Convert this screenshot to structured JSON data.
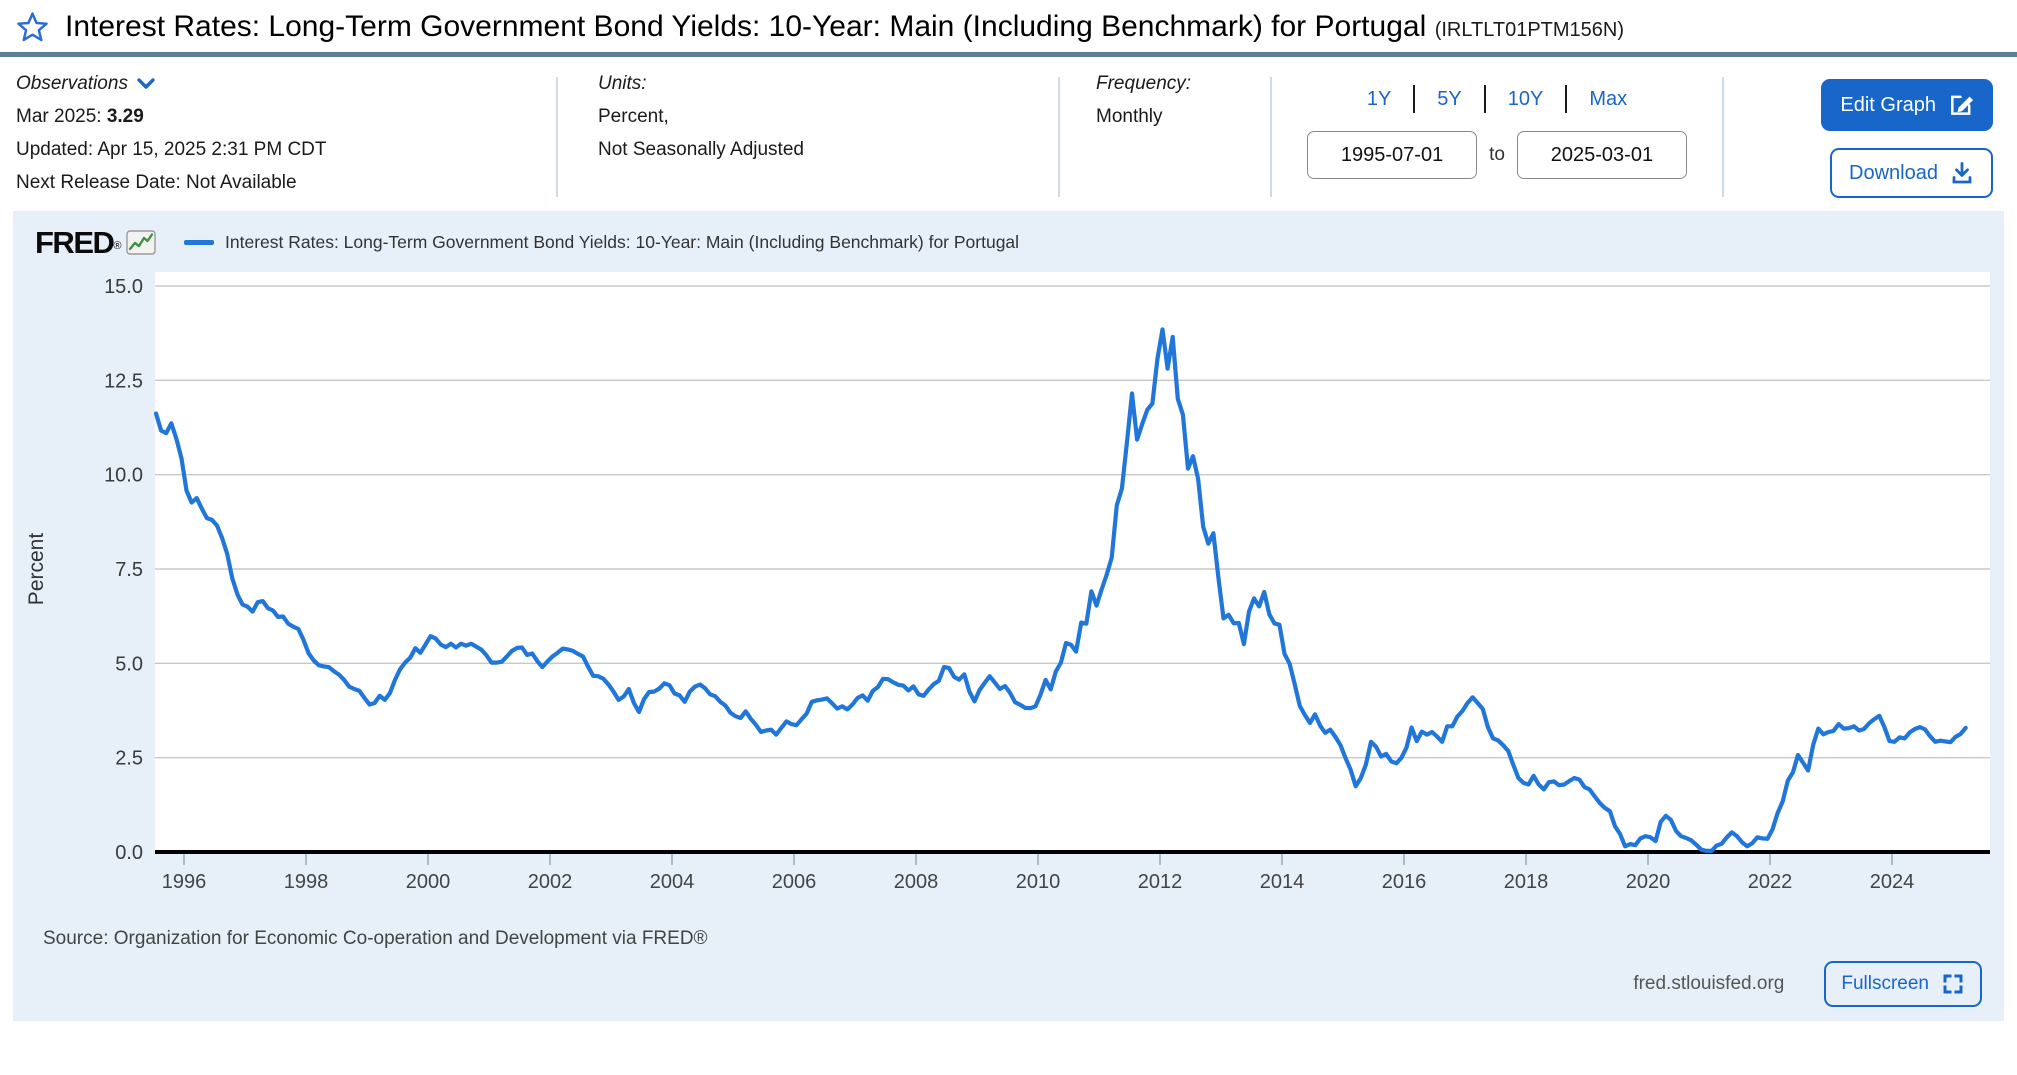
{
  "accent_color": "#1866c9",
  "title": {
    "text": "Interest Rates: Long-Term Government Bond Yields: 10-Year: Main (Including Benchmark) for Portugal",
    "series_id": "(IRLTLT01PTM156N)"
  },
  "header": {
    "observations": {
      "label": "Observations",
      "latest_period": "Mar 2025:",
      "latest_value": "3.29",
      "updated": "Updated: Apr 15, 2025 2:31 PM CDT",
      "next_release": "Next Release Date: Not Available"
    },
    "units": {
      "label": "Units:",
      "line1": "Percent,",
      "line2": "Not Seasonally Adjusted"
    },
    "frequency": {
      "label": "Frequency:",
      "value": "Monthly"
    },
    "range": {
      "presets": [
        "1Y",
        "5Y",
        "10Y",
        "Max"
      ],
      "start": "1995-07-01",
      "separator": "to",
      "end": "2025-03-01"
    },
    "buttons": {
      "edit": "Edit Graph",
      "download": "Download"
    }
  },
  "chart": {
    "logo": "FRED",
    "legend": "Interest Rates: Long-Term Government Bond Yields: 10-Year: Main (Including Benchmark) for Portugal",
    "source": "Source: Organization for Economic Co-operation and Development via FRED®",
    "site": "fred.stlouisfed.org",
    "fullscreen": "Fullscreen"
  },
  "chart_data": {
    "type": "line",
    "title": "Interest Rates: Long-Term Government Bond Yields: 10-Year: Main (Including Benchmark) for Portugal",
    "xlabel": "",
    "ylabel": "Percent",
    "ylim": [
      0,
      15
    ],
    "y_ticks": [
      15.0,
      12.5,
      10.0,
      7.5,
      5.0,
      2.5,
      0.0
    ],
    "x_ticks": [
      1996,
      1998,
      2000,
      2002,
      2004,
      2006,
      2008,
      2010,
      2012,
      2014,
      2016,
      2018,
      2020,
      2022,
      2024
    ],
    "grid": true,
    "legend_position": "top",
    "line_color": "#2176d9",
    "start": "1995-07",
    "end": "2025-03",
    "series": [
      {
        "year": 1995,
        "first_month": 7,
        "values": [
          11.62,
          11.17,
          11.1,
          11.36,
          10.95,
          10.43
        ]
      },
      {
        "year": 1996,
        "first_month": 1,
        "values": [
          9.58,
          9.26,
          9.38,
          9.1,
          8.85,
          8.8,
          8.65,
          8.32,
          7.9,
          7.25,
          6.83,
          6.56
        ]
      },
      {
        "year": 1997,
        "first_month": 1,
        "values": [
          6.5,
          6.37,
          6.62,
          6.65,
          6.46,
          6.4,
          6.23,
          6.24,
          6.05,
          5.97,
          5.91,
          5.62
        ]
      },
      {
        "year": 1998,
        "first_month": 1,
        "values": [
          5.27,
          5.08,
          4.95,
          4.92,
          4.9,
          4.79,
          4.7,
          4.56,
          4.38,
          4.32,
          4.27,
          4.08
        ]
      },
      {
        "year": 1999,
        "first_month": 1,
        "values": [
          3.91,
          3.95,
          4.14,
          4.03,
          4.21,
          4.56,
          4.84,
          5.02,
          5.15,
          5.4,
          5.28,
          5.5
        ]
      },
      {
        "year": 2000,
        "first_month": 1,
        "values": [
          5.72,
          5.66,
          5.5,
          5.43,
          5.52,
          5.42,
          5.52,
          5.47,
          5.52,
          5.44,
          5.36,
          5.21
        ]
      },
      {
        "year": 2001,
        "first_month": 1,
        "values": [
          5.02,
          5.02,
          5.04,
          5.18,
          5.33,
          5.41,
          5.42,
          5.22,
          5.26,
          5.06,
          4.9,
          5.05
        ]
      },
      {
        "year": 2002,
        "first_month": 1,
        "values": [
          5.18,
          5.28,
          5.39,
          5.37,
          5.33,
          5.25,
          5.18,
          4.91,
          4.67,
          4.66,
          4.59,
          4.44
        ]
      },
      {
        "year": 2003,
        "first_month": 1,
        "values": [
          4.25,
          4.03,
          4.12,
          4.32,
          3.95,
          3.71,
          4.05,
          4.24,
          4.25,
          4.33,
          4.47,
          4.42
        ]
      },
      {
        "year": 2004,
        "first_month": 1,
        "values": [
          4.2,
          4.15,
          3.98,
          4.25,
          4.38,
          4.44,
          4.34,
          4.18,
          4.13,
          3.98,
          3.88,
          3.69
        ]
      },
      {
        "year": 2005,
        "first_month": 1,
        "values": [
          3.6,
          3.55,
          3.73,
          3.53,
          3.37,
          3.18,
          3.22,
          3.24,
          3.11,
          3.29,
          3.46,
          3.39
        ]
      },
      {
        "year": 2006,
        "first_month": 1,
        "values": [
          3.36,
          3.52,
          3.67,
          3.98,
          4.02,
          4.04,
          4.07,
          3.94,
          3.8,
          3.86,
          3.78,
          3.91
        ]
      },
      {
        "year": 2007,
        "first_month": 1,
        "values": [
          4.08,
          4.15,
          4.01,
          4.27,
          4.37,
          4.59,
          4.58,
          4.5,
          4.43,
          4.41,
          4.28,
          4.39
        ]
      },
      {
        "year": 2008,
        "first_month": 1,
        "values": [
          4.18,
          4.14,
          4.31,
          4.45,
          4.54,
          4.9,
          4.88,
          4.64,
          4.57,
          4.71,
          4.25,
          3.99
        ]
      },
      {
        "year": 2009,
        "first_month": 1,
        "values": [
          4.29,
          4.48,
          4.66,
          4.49,
          4.32,
          4.4,
          4.22,
          3.97,
          3.9,
          3.82,
          3.81,
          3.86
        ]
      },
      {
        "year": 2010,
        "first_month": 1,
        "values": [
          4.17,
          4.56,
          4.31,
          4.78,
          5.02,
          5.54,
          5.49,
          5.31,
          6.08,
          6.05,
          6.91,
          6.53
        ]
      },
      {
        "year": 2011,
        "first_month": 1,
        "values": [
          6.95,
          7.34,
          7.8,
          9.19,
          9.63,
          10.87,
          12.15,
          10.93,
          11.34,
          11.72,
          11.89,
          13.08
        ]
      },
      {
        "year": 2012,
        "first_month": 1,
        "values": [
          13.85,
          12.81,
          13.65,
          12.01,
          11.59,
          10.16,
          10.49,
          9.89,
          8.62,
          8.17,
          8.45,
          7.25
        ]
      },
      {
        "year": 2013,
        "first_month": 1,
        "values": [
          6.19,
          6.29,
          6.06,
          6.07,
          5.51,
          6.37,
          6.72,
          6.51,
          6.89,
          6.3,
          6.06,
          6.02
        ]
      },
      {
        "year": 2014,
        "first_month": 1,
        "values": [
          5.25,
          4.99,
          4.45,
          3.87,
          3.63,
          3.42,
          3.65,
          3.35,
          3.16,
          3.24,
          3.05,
          2.83
        ]
      },
      {
        "year": 2015,
        "first_month": 1,
        "values": [
          2.49,
          2.18,
          1.74,
          1.96,
          2.32,
          2.92,
          2.79,
          2.53,
          2.6,
          2.4,
          2.35,
          2.5
        ]
      },
      {
        "year": 2016,
        "first_month": 1,
        "values": [
          2.77,
          3.3,
          2.94,
          3.19,
          3.11,
          3.18,
          3.06,
          2.92,
          3.33,
          3.33,
          3.59,
          3.74
        ]
      },
      {
        "year": 2017,
        "first_month": 1,
        "values": [
          3.95,
          4.1,
          3.95,
          3.79,
          3.31,
          3.01,
          2.96,
          2.83,
          2.68,
          2.31,
          1.96,
          1.83
        ]
      },
      {
        "year": 2018,
        "first_month": 1,
        "values": [
          1.79,
          2.02,
          1.79,
          1.66,
          1.85,
          1.87,
          1.77,
          1.79,
          1.88,
          1.96,
          1.92,
          1.72
        ]
      },
      {
        "year": 2019,
        "first_month": 1,
        "values": [
          1.66,
          1.48,
          1.3,
          1.17,
          1.08,
          0.68,
          0.48,
          0.15,
          0.21,
          0.18,
          0.36,
          0.42
        ]
      },
      {
        "year": 2020,
        "first_month": 1,
        "values": [
          0.39,
          0.29,
          0.8,
          0.96,
          0.85,
          0.56,
          0.42,
          0.37,
          0.31,
          0.19,
          0.06,
          0.03
        ]
      },
      {
        "year": 2021,
        "first_month": 1,
        "values": [
          0.03,
          0.17,
          0.22,
          0.39,
          0.52,
          0.42,
          0.26,
          0.15,
          0.23,
          0.39,
          0.36,
          0.35
        ]
      },
      {
        "year": 2022,
        "first_month": 1,
        "values": [
          0.6,
          1.03,
          1.34,
          1.89,
          2.11,
          2.57,
          2.37,
          2.16,
          2.84,
          3.27,
          3.12,
          3.18
        ]
      },
      {
        "year": 2023,
        "first_month": 1,
        "values": [
          3.21,
          3.39,
          3.27,
          3.28,
          3.33,
          3.22,
          3.26,
          3.41,
          3.52,
          3.61,
          3.31,
          2.94
        ]
      },
      {
        "year": 2024,
        "first_month": 1,
        "values": [
          2.92,
          3.04,
          3.01,
          3.17,
          3.26,
          3.31,
          3.25,
          3.07,
          2.92,
          2.95,
          2.93,
          2.91
        ]
      },
      {
        "year": 2025,
        "first_month": 1,
        "values": [
          3.05,
          3.13,
          3.29
        ]
      }
    ]
  }
}
